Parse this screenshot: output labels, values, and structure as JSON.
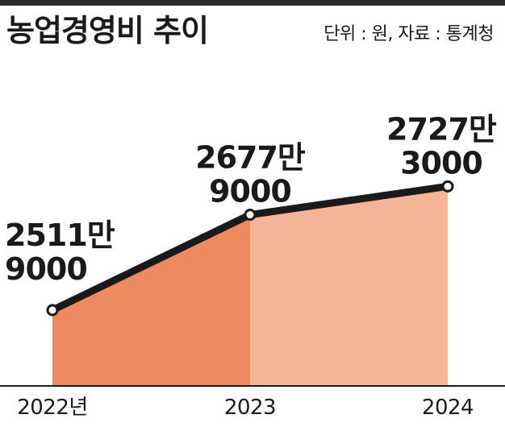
{
  "header": {
    "title": "농업경영비 추이",
    "source": "단위 : 원, 자료 : 통계청"
  },
  "colors": {
    "area_first": "#ef8a5e",
    "area_second": "#f4b597",
    "line": "#1a1a1a",
    "rule": "#2b2b2b"
  },
  "chart_data": {
    "type": "area",
    "title": "농업경영비 추이",
    "unit": "원",
    "source": "통계청",
    "categories": [
      "2022년",
      "2023",
      "2024"
    ],
    "values": [
      25119000,
      26779000,
      27273000
    ],
    "data_labels": [
      [
        "2511만",
        "9000"
      ],
      [
        "2677만",
        "9000"
      ],
      [
        "2727만",
        "3000"
      ]
    ],
    "ylim": [
      23800000,
      27600000
    ],
    "grid": false,
    "legend": "none"
  }
}
